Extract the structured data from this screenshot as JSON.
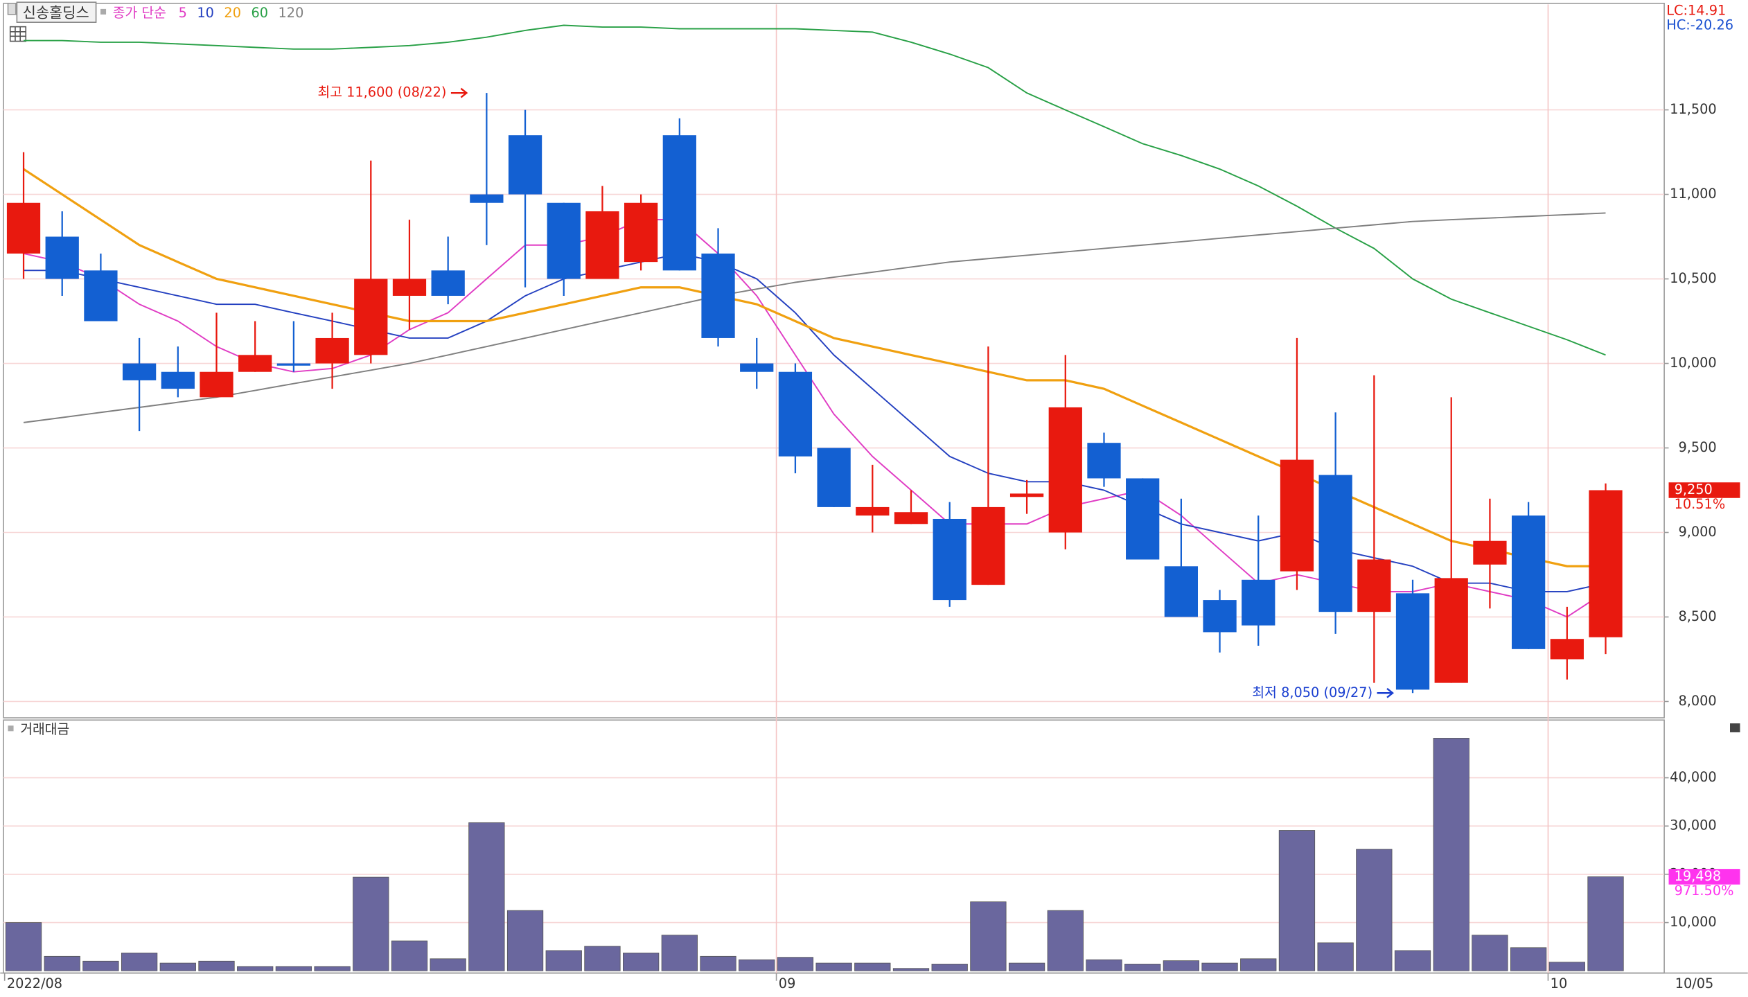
{
  "chart_data": [
    {
      "type": "candlestick",
      "title": "신송홀딩스",
      "subtitle": "종가 단순",
      "categories": [
        "2022/08",
        null,
        null,
        null,
        null,
        null,
        null,
        null,
        null,
        null,
        null,
        null,
        null,
        null,
        null,
        null,
        null,
        null,
        null,
        null,
        "09",
        null,
        null,
        null,
        null,
        null,
        null,
        null,
        null,
        null,
        null,
        null,
        null,
        null,
        null,
        null,
        null,
        null,
        null,
        null,
        "10",
        "10/05"
      ],
      "open": [
        10650,
        10750,
        10550,
        10000,
        9950,
        9800,
        9950,
        10000,
        10000,
        10050,
        10400,
        10550,
        11000,
        11350,
        10950,
        10500,
        10600,
        11350,
        10650,
        10000,
        9950,
        9500,
        9100,
        9050,
        9080,
        8690,
        9210,
        9000,
        9530,
        9320,
        8800,
        8600,
        8720,
        8770,
        9340,
        8530,
        8640,
        8110,
        8810,
        9100,
        8250,
        8380
      ],
      "high": [
        11250,
        10900,
        10650,
        10150,
        10100,
        10300,
        10250,
        10250,
        10300,
        11200,
        10850,
        10750,
        11600,
        11500,
        10950,
        11050,
        11000,
        11450,
        10800,
        10150,
        10000,
        9500,
        9400,
        9250,
        9180,
        10100,
        9310,
        10050,
        9590,
        9320,
        9200,
        8660,
        9100,
        10150,
        9710,
        9930,
        8720,
        9800,
        9200,
        9180,
        8560,
        9290
      ],
      "low": [
        10500,
        10400,
        10250,
        9600,
        9800,
        9800,
        9950,
        9950,
        9850,
        10000,
        10200,
        10350,
        10700,
        10450,
        10400,
        10500,
        10550,
        10550,
        10100,
        9850,
        9350,
        9150,
        9000,
        9050,
        8560,
        8690,
        9110,
        8900,
        9270,
        8840,
        8500,
        8290,
        8330,
        8660,
        8400,
        8110,
        8050,
        8110,
        8550,
        8310,
        8130,
        8280
      ],
      "close": [
        10950,
        10500,
        10250,
        9900,
        9850,
        9950,
        10050,
        9990,
        10150,
        10500,
        10500,
        10400,
        10950,
        11000,
        10500,
        10900,
        10950,
        10550,
        10150,
        9950,
        9450,
        9150,
        9150,
        9120,
        8600,
        9150,
        9230,
        9740,
        9320,
        8840,
        8500,
        8410,
        8450,
        9430,
        8530,
        8840,
        8070,
        8730,
        8950,
        8310,
        8370,
        9250
      ],
      "up_color": "#e8190f",
      "down_color": "#1360d2",
      "series": [
        {
          "name": "5",
          "color": "#e03cc4",
          "values": [
            10650,
            10600,
            10500,
            10350,
            10250,
            10100,
            10000,
            9950,
            9970,
            10050,
            10200,
            10300,
            10500,
            10700,
            10700,
            10750,
            10850,
            10850,
            10650,
            10400,
            10050,
            9700,
            9450,
            9250,
            9050,
            9050,
            9050,
            9150,
            9200,
            9250,
            9100,
            8900,
            8700,
            8750,
            8700,
            8650,
            8650,
            8700,
            8650,
            8600,
            8500,
            8650
          ]
        },
        {
          "name": "10",
          "color": "#2440c0",
          "values": [
            10550,
            10550,
            10500,
            10450,
            10400,
            10350,
            10350,
            10300,
            10250,
            10200,
            10150,
            10150,
            10250,
            10400,
            10500,
            10550,
            10600,
            10650,
            10600,
            10500,
            10300,
            10050,
            9850,
            9650,
            9450,
            9350,
            9300,
            9300,
            9250,
            9150,
            9050,
            9000,
            8950,
            9000,
            8900,
            8850,
            8800,
            8700,
            8700,
            8650,
            8650,
            8700
          ]
        },
        {
          "name": "20",
          "color": "#f0a010",
          "values": [
            11150,
            11000,
            10850,
            10700,
            10600,
            10500,
            10450,
            10400,
            10350,
            10300,
            10250,
            10250,
            10250,
            10300,
            10350,
            10400,
            10450,
            10450,
            10400,
            10350,
            10250,
            10150,
            10100,
            10050,
            10000,
            9950,
            9900,
            9900,
            9850,
            9750,
            9650,
            9550,
            9450,
            9350,
            9250,
            9150,
            9050,
            8950,
            8900,
            8850,
            8800,
            8800
          ]
        },
        {
          "name": "60",
          "color": "#28a046",
          "values": [
            11910,
            11910,
            11900,
            11900,
            11890,
            11880,
            11870,
            11860,
            11860,
            11870,
            11880,
            11900,
            11930,
            11970,
            12000,
            11990,
            11990,
            11980,
            11980,
            11980,
            11980,
            11970,
            11960,
            11900,
            11830,
            11750,
            11600,
            11500,
            11400,
            11300,
            11230,
            11150,
            11050,
            10930,
            10800,
            10680,
            10500,
            10380,
            10300,
            10220,
            10140,
            10050
          ]
        },
        {
          "name": "120",
          "color": "#7f7f7f",
          "values": [
            9650,
            9680,
            9710,
            9740,
            9770,
            9800,
            9840,
            9880,
            9920,
            9960,
            10000,
            10050,
            10100,
            10150,
            10200,
            10250,
            10300,
            10350,
            10400,
            10440,
            10480,
            10510,
            10540,
            10570,
            10600,
            10620,
            10640,
            10660,
            10680,
            10700,
            10720,
            10740,
            10760,
            10780,
            10800,
            10820,
            10840,
            10850,
            10860,
            10870,
            10880,
            10890
          ]
        }
      ],
      "ylim": [
        7910,
        12150
      ],
      "yticks": [
        {
          "value": 8000,
          "label": "8,000"
        },
        {
          "value": 8500,
          "label": "8,500"
        },
        {
          "value": 9000,
          "label": "9,000"
        },
        {
          "value": 9500,
          "label": "9,500"
        },
        {
          "value": 10000,
          "label": "10,000"
        },
        {
          "value": 10500,
          "label": "10,500"
        },
        {
          "value": 11000,
          "label": "11,000"
        },
        {
          "value": 11500,
          "label": "11,500"
        }
      ],
      "grid": true,
      "annotations": [
        {
          "text": "최고 11,600 (08/22)",
          "value": 11600,
          "color": "#e8190f"
        },
        {
          "text": "최저 8,050 (09/27)",
          "value": 8050,
          "color": "#1a3fd0"
        }
      ],
      "last_price": {
        "value": 9250,
        "label": "9,250"
      },
      "change": "10.51%",
      "lc": "LC:14.91",
      "hc": "HC:-20.26"
    },
    {
      "type": "bar",
      "title": "거래대금",
      "values": [
        10000,
        3000,
        2000,
        3700,
        1600,
        2000,
        900,
        900,
        900,
        19400,
        6200,
        2500,
        30700,
        12500,
        4200,
        5100,
        3700,
        7400,
        3000,
        2300,
        2800,
        1600,
        1600,
        500,
        1400,
        14300,
        1600,
        12500,
        2300,
        1400,
        2100,
        1600,
        2500,
        29100,
        5800,
        25200,
        4200,
        48200,
        7400,
        4800,
        1800,
        19498
      ],
      "color": "#6a679e",
      "ylim": [
        0,
        51500
      ],
      "yticks": [
        {
          "value": 10000,
          "label": "10,000"
        },
        {
          "value": 20000,
          "label": "20,000"
        },
        {
          "value": 30000,
          "label": "30,000"
        },
        {
          "value": 40000,
          "label": "40,000"
        }
      ],
      "grid": true,
      "last_value": {
        "value": 19498,
        "label": "19,498"
      },
      "change": "971.50%"
    }
  ]
}
